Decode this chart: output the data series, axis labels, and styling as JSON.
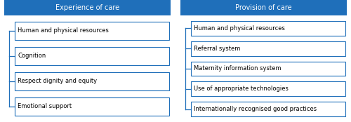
{
  "fig_width": 5.0,
  "fig_height": 1.74,
  "dpi": 100,
  "background_color": "#ffffff",
  "header_bg_color": "#1f6fba",
  "header_text_color": "#ffffff",
  "box_edge_color": "#1f6fba",
  "box_face_color": "#ffffff",
  "text_color": "#000000",
  "left_header": "Experience of care",
  "right_header": "Provision of care",
  "left_items": [
    "Human and physical resources",
    "Cognition",
    "Respect dignity and equity",
    "Emotional support"
  ],
  "right_items": [
    "Human and physical resources",
    "Referral system",
    "Maternity information system",
    "Use of appropriate technologies",
    "Internationally recognised good practices"
  ],
  "header_fontsize": 7.0,
  "item_fontsize": 6.0
}
